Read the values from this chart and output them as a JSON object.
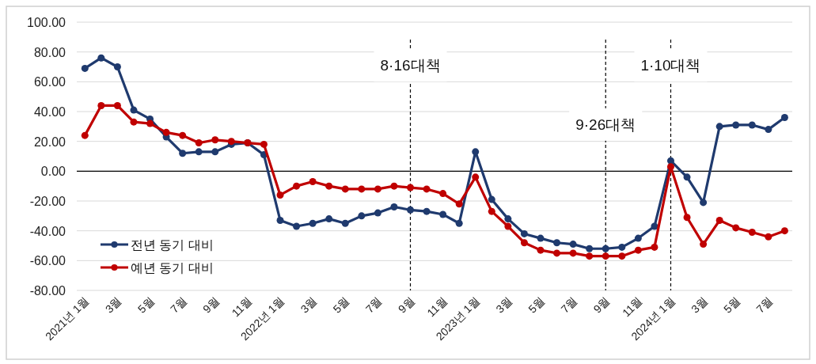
{
  "chart_data": {
    "type": "line",
    "x": [
      "2021-01",
      "2021-02",
      "2021-03",
      "2021-04",
      "2021-05",
      "2021-06",
      "2021-07",
      "2021-08",
      "2021-09",
      "2021-10",
      "2021-11",
      "2021-12",
      "2022-01",
      "2022-02",
      "2022-03",
      "2022-04",
      "2022-05",
      "2022-06",
      "2022-07",
      "2022-08",
      "2022-09",
      "2022-10",
      "2022-11",
      "2022-12",
      "2023-01",
      "2023-02",
      "2023-03",
      "2023-04",
      "2023-05",
      "2023-06",
      "2023-07",
      "2023-08",
      "2023-09",
      "2023-10",
      "2023-11",
      "2023-12",
      "2024-01",
      "2024-02",
      "2024-03",
      "2024-04",
      "2024-05",
      "2024-06",
      "2024-07",
      "2024-08"
    ],
    "series": [
      {
        "name": "전년 동기 대비",
        "color": "#1f3a6e",
        "values": [
          69,
          76,
          70,
          41,
          35,
          23,
          12,
          13,
          13,
          18,
          19,
          11,
          -33,
          -37,
          -35,
          -32,
          -35,
          -30,
          -28,
          -24,
          -26,
          -27,
          -29,
          -35,
          13,
          -19,
          -32,
          -42,
          -45,
          -48,
          -49,
          -52,
          -52,
          -51,
          -45,
          -37,
          7,
          -4,
          -21,
          30,
          31,
          31,
          28,
          36
        ]
      },
      {
        "name": "예년 동기 대비",
        "color": "#c00000",
        "values": [
          24,
          44,
          44,
          33,
          32,
          26,
          24,
          19,
          21,
          20,
          19,
          18,
          -16,
          -10,
          -7,
          -10,
          -12,
          -12,
          -12,
          -10,
          -11,
          -12,
          -15,
          -22,
          -4,
          -27,
          -37,
          -48,
          -53,
          -55,
          -55,
          -57,
          -57,
          -57,
          -53,
          -51,
          3,
          -31,
          -49,
          -33,
          -38,
          -41,
          -44,
          -40
        ]
      }
    ],
    "xlim": [
      "2020-12-16",
      "2024-08-15"
    ],
    "xticks": [
      {
        "value": "2021-01",
        "label": "2021년 1월"
      },
      {
        "value": "2021-03",
        "label": "3월"
      },
      {
        "value": "2021-05",
        "label": "5월"
      },
      {
        "value": "2021-07",
        "label": "7월"
      },
      {
        "value": "2021-09",
        "label": "9월"
      },
      {
        "value": "2021-11",
        "label": "11월"
      },
      {
        "value": "2022-01",
        "label": "2022년 1월"
      },
      {
        "value": "2022-03",
        "label": "3월"
      },
      {
        "value": "2022-05",
        "label": "5월"
      },
      {
        "value": "2022-07",
        "label": "7월"
      },
      {
        "value": "2022-09",
        "label": "9월"
      },
      {
        "value": "2022-11",
        "label": "11월"
      },
      {
        "value": "2023-01",
        "label": "2023년 1월"
      },
      {
        "value": "2023-03",
        "label": "3월"
      },
      {
        "value": "2023-05",
        "label": "5월"
      },
      {
        "value": "2023-07",
        "label": "7월"
      },
      {
        "value": "2023-09",
        "label": "9월"
      },
      {
        "value": "2023-11",
        "label": "11월"
      },
      {
        "value": "2024-01",
        "label": "2024년 1월"
      },
      {
        "value": "2024-03",
        "label": "3월"
      },
      {
        "value": "2024-05",
        "label": "5월"
      },
      {
        "value": "2024-07",
        "label": "7월"
      }
    ],
    "ylim": [
      -80,
      100
    ],
    "yticks": [
      {
        "value": -80,
        "label": "-80.00"
      },
      {
        "value": -60,
        "label": "-60.00"
      },
      {
        "value": -40,
        "label": "-40.00"
      },
      {
        "value": -20,
        "label": "-20.00"
      },
      {
        "value": 0,
        "label": "0.00"
      },
      {
        "value": 20,
        "label": "20.00"
      },
      {
        "value": 40,
        "label": "40.00"
      },
      {
        "value": 60,
        "label": "60.00"
      },
      {
        "value": 80,
        "label": "80.00"
      },
      {
        "value": 100,
        "label": "100.00"
      }
    ],
    "ref_lines": [
      {
        "axis": "y",
        "value": 0,
        "color": "#000000",
        "line_style": "solid"
      },
      {
        "axis": "x",
        "value": "2022-09",
        "label": "8·16대책",
        "color": "#000000",
        "line_style": "dashed"
      },
      {
        "axis": "x",
        "value": "2023-09",
        "label": "9·26대책",
        "color": "#000000",
        "line_style": "dashed"
      },
      {
        "axis": "x",
        "value": "2024-01",
        "label": "1·10대책",
        "color": "#000000",
        "line_style": "dashed"
      }
    ],
    "grid": "y",
    "legend": "bottom left",
    "marker": "circle",
    "line_style": "solid"
  }
}
